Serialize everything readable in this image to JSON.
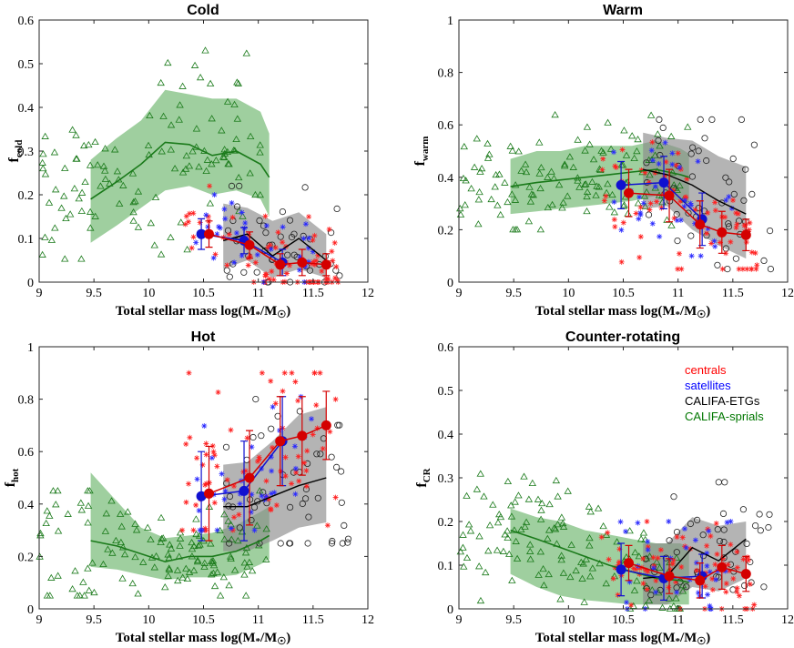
{
  "figure": {
    "xlabel_main": "Total stellar mass log(M",
    "xlabel_star": "*",
    "xlabel_mid": "/M",
    "xlabel_sun": "☉",
    "xlabel_end": ")",
    "legend": [
      {
        "label": "centrals",
        "color": "#ff0000"
      },
      {
        "label": "satellites",
        "color": "#0000ff"
      },
      {
        "label": "CALIFA-ETGs",
        "color": "#000000"
      },
      {
        "label": "CALIFA-sprials",
        "color": "#007700"
      }
    ]
  },
  "colors": {
    "central": "#d40000",
    "central_pts": "#ff2020",
    "satellite": "#1010d0",
    "satellite_pts": "#2a2aff",
    "etg": "#000000",
    "spiral": "#1a7a1a",
    "spiral_band": "#7fbf7f",
    "etg_band": "#8c8c8c"
  },
  "chart_data": [
    {
      "type": "line",
      "title": "Cold",
      "ylabel": "f",
      "ylabel_sub": "cold",
      "xlim": [
        9,
        12
      ],
      "ylim": [
        0,
        0.6
      ],
      "xticks": [
        9,
        9.5,
        10,
        10.5,
        11,
        11.5,
        12
      ],
      "xtick_labels": [
        "9",
        "9.5",
        "10",
        "10.5",
        "11",
        "11.5",
        "12"
      ],
      "yticks": [
        0,
        0.1,
        0.2,
        0.3,
        0.4,
        0.5,
        0.6
      ],
      "ytick_labels": [
        "0",
        "0.1",
        "0.2",
        "0.3",
        "0.4",
        "0.5",
        "0.6"
      ],
      "spirals": {
        "x": [
          9.47,
          9.71,
          9.93,
          10.15,
          10.37,
          10.58,
          10.8,
          11.02,
          11.1
        ],
        "y": [
          0.19,
          0.23,
          0.27,
          0.32,
          0.315,
          0.29,
          0.3,
          0.27,
          0.24
        ],
        "lo": [
          0.09,
          0.13,
          0.17,
          0.21,
          0.22,
          0.2,
          0.21,
          0.19,
          0.15
        ],
        "hi": [
          0.28,
          0.33,
          0.37,
          0.44,
          0.43,
          0.42,
          0.42,
          0.39,
          0.34
        ],
        "scatter_n": 120,
        "scatter_x": [
          9.0,
          11.1
        ],
        "scatter_y": [
          0.03,
          0.53
        ]
      },
      "etgs": {
        "x": [
          10.68,
          10.9,
          11.13,
          11.37,
          11.62
        ],
        "y": [
          0.095,
          0.11,
          0.06,
          0.1,
          0.05
        ],
        "lo": [
          0.03,
          0.05,
          0.01,
          0.03,
          0.01
        ],
        "hi": [
          0.18,
          0.17,
          0.14,
          0.16,
          0.11
        ],
        "scatter_n": 45,
        "scatter_x": [
          10.7,
          11.8
        ],
        "scatter_y": [
          0.0,
          0.22
        ]
      },
      "satellites": {
        "x": [
          10.48,
          10.87,
          11.22
        ],
        "y": [
          0.11,
          0.095,
          0.045
        ],
        "err": [
          0.035,
          0.03,
          0.03
        ],
        "scatter_n": 35,
        "scatter_x": [
          10.4,
          11.5
        ],
        "scatter_y": [
          0.0,
          0.2
        ]
      },
      "centrals": {
        "x": [
          10.55,
          10.92,
          11.2,
          11.4,
          11.62
        ],
        "y": [
          0.11,
          0.085,
          0.04,
          0.045,
          0.04
        ],
        "err": [
          0.03,
          0.03,
          0.025,
          0.03,
          0.025
        ],
        "scatter_n": 75,
        "scatter_x": [
          10.3,
          11.75
        ],
        "scatter_y": [
          0.0,
          0.22
        ]
      }
    },
    {
      "type": "line",
      "title": "Warm",
      "ylabel": "f",
      "ylabel_sub": "warm",
      "xlim": [
        9,
        12
      ],
      "ylim": [
        0,
        1
      ],
      "xticks": [
        9,
        9.5,
        10,
        10.5,
        11,
        11.5,
        12
      ],
      "xtick_labels": [
        "9",
        "9.5",
        "10",
        "10.5",
        "11",
        "11.5",
        "12"
      ],
      "yticks": [
        0,
        0.2,
        0.4,
        0.6,
        0.8,
        1
      ],
      "ytick_labels": [
        "0",
        "0.2",
        "0.4",
        "0.6",
        "0.8",
        "1"
      ],
      "spirals": {
        "x": [
          9.47,
          9.71,
          9.93,
          10.15,
          10.37,
          10.58,
          10.8,
          11.02,
          11.1
        ],
        "y": [
          0.365,
          0.38,
          0.39,
          0.4,
          0.41,
          0.42,
          0.43,
          0.41,
          0.4
        ],
        "lo": [
          0.26,
          0.27,
          0.28,
          0.29,
          0.3,
          0.31,
          0.33,
          0.31,
          0.3
        ],
        "hi": [
          0.47,
          0.5,
          0.5,
          0.52,
          0.52,
          0.52,
          0.54,
          0.51,
          0.49
        ],
        "scatter_n": 130,
        "scatter_x": [
          9.0,
          11.1
        ],
        "scatter_y": [
          0.2,
          0.65
        ]
      },
      "etgs": {
        "x": [
          10.68,
          10.9,
          11.13,
          11.37,
          11.62
        ],
        "y": [
          0.43,
          0.41,
          0.37,
          0.31,
          0.26
        ],
        "lo": [
          0.28,
          0.29,
          0.2,
          0.14,
          0.09
        ],
        "hi": [
          0.57,
          0.55,
          0.54,
          0.48,
          0.44
        ],
        "scatter_n": 50,
        "scatter_x": [
          10.7,
          11.85
        ],
        "scatter_y": [
          0.05,
          0.62
        ]
      },
      "satellites": {
        "x": [
          10.48,
          10.87,
          11.22
        ],
        "y": [
          0.37,
          0.38,
          0.24
        ],
        "err": [
          0.09,
          0.1,
          0.1
        ],
        "scatter_n": 35,
        "scatter_x": [
          10.4,
          11.5
        ],
        "scatter_y": [
          0.1,
          0.6
        ]
      },
      "centrals": {
        "x": [
          10.55,
          10.92,
          11.2,
          11.4,
          11.62
        ],
        "y": [
          0.34,
          0.33,
          0.22,
          0.19,
          0.18
        ],
        "err": [
          0.09,
          0.1,
          0.09,
          0.08,
          0.06
        ],
        "scatter_n": 75,
        "scatter_x": [
          10.3,
          11.75
        ],
        "scatter_y": [
          0.05,
          0.6
        ]
      }
    },
    {
      "type": "line",
      "title": "Hot",
      "ylabel": "f",
      "ylabel_sub": "hot",
      "xlim": [
        9,
        12
      ],
      "ylim": [
        0,
        1
      ],
      "xticks": [
        9,
        9.5,
        10,
        10.5,
        11,
        11.5,
        12
      ],
      "xtick_labels": [
        "9",
        "9.5",
        "10",
        "10.5",
        "11",
        "11.5",
        "12"
      ],
      "yticks": [
        0,
        0.2,
        0.4,
        0.6,
        0.8,
        1
      ],
      "ytick_labels": [
        "0",
        "0.2",
        "0.4",
        "0.6",
        "0.8",
        "1"
      ],
      "spirals": {
        "x": [
          9.47,
          9.71,
          9.93,
          10.15,
          10.37,
          10.58,
          10.8,
          11.02,
          11.1
        ],
        "y": [
          0.26,
          0.24,
          0.21,
          0.18,
          0.2,
          0.2,
          0.22,
          0.26,
          0.28
        ],
        "lo": [
          0.16,
          0.15,
          0.13,
          0.11,
          0.12,
          0.12,
          0.13,
          0.17,
          0.19
        ],
        "hi": [
          0.52,
          0.41,
          0.31,
          0.27,
          0.28,
          0.29,
          0.32,
          0.37,
          0.39
        ],
        "scatter_n": 130,
        "scatter_x": [
          9.0,
          11.1
        ],
        "scatter_y": [
          0.05,
          0.45
        ]
      },
      "etgs": {
        "x": [
          10.68,
          10.9,
          11.13,
          11.37,
          11.62
        ],
        "y": [
          0.39,
          0.39,
          0.43,
          0.47,
          0.5
        ],
        "lo": [
          0.22,
          0.22,
          0.26,
          0.31,
          0.33
        ],
        "hi": [
          0.55,
          0.56,
          0.64,
          0.74,
          0.77
        ],
        "scatter_n": 50,
        "scatter_x": [
          10.7,
          11.85
        ],
        "scatter_y": [
          0.25,
          0.8
        ]
      },
      "satellites": {
        "x": [
          10.48,
          10.87,
          11.22
        ],
        "y": [
          0.43,
          0.45,
          0.64
        ],
        "err": [
          0.17,
          0.19,
          0.17
        ],
        "scatter_n": 35,
        "scatter_x": [
          10.4,
          11.5
        ],
        "scatter_y": [
          0.3,
          0.88
        ]
      },
      "centrals": {
        "x": [
          10.55,
          10.92,
          11.2,
          11.4,
          11.62
        ],
        "y": [
          0.44,
          0.5,
          0.64,
          0.66,
          0.7
        ],
        "err": [
          0.18,
          0.18,
          0.17,
          0.15,
          0.13
        ],
        "scatter_n": 75,
        "scatter_x": [
          10.3,
          11.75
        ],
        "scatter_y": [
          0.3,
          0.9
        ]
      }
    },
    {
      "type": "line",
      "title": "Counter-rotating",
      "ylabel": "f",
      "ylabel_sub": "CR",
      "xlim": [
        9,
        12
      ],
      "ylim": [
        0,
        0.6
      ],
      "xticks": [
        9,
        9.5,
        10,
        10.5,
        11,
        11.5,
        12
      ],
      "xtick_labels": [
        "9",
        "9.5",
        "10",
        "10.5",
        "11",
        "11.5",
        "12"
      ],
      "yticks": [
        0,
        0.1,
        0.2,
        0.3,
        0.4,
        0.5,
        0.6
      ],
      "ytick_labels": [
        "0",
        "0.1",
        "0.2",
        "0.3",
        "0.4",
        "0.5",
        "0.6"
      ],
      "spirals": {
        "x": [
          9.47,
          9.71,
          9.93,
          10.15,
          10.37,
          10.58,
          10.8,
          11.02,
          11.1
        ],
        "y": [
          0.18,
          0.16,
          0.14,
          0.12,
          0.1,
          0.085,
          0.07,
          0.065,
          0.06
        ],
        "lo": [
          0.08,
          0.05,
          0.03,
          0.02,
          0.015,
          0.01,
          0.01,
          0.01,
          0.01
        ],
        "hi": [
          0.23,
          0.21,
          0.2,
          0.18,
          0.17,
          0.16,
          0.15,
          0.15,
          0.14
        ],
        "scatter_n": 130,
        "scatter_x": [
          9.0,
          11.1
        ],
        "scatter_y": [
          0.0,
          0.37
        ]
      },
      "etgs": {
        "x": [
          10.68,
          10.9,
          11.13,
          11.37,
          11.62
        ],
        "y": [
          0.07,
          0.075,
          0.14,
          0.11,
          0.16
        ],
        "lo": [
          0.01,
          0.01,
          0.05,
          0.04,
          0.07
        ],
        "hi": [
          0.15,
          0.15,
          0.21,
          0.19,
          0.2
        ],
        "scatter_n": 45,
        "scatter_x": [
          10.7,
          11.85
        ],
        "scatter_y": [
          0.0,
          0.29
        ]
      },
      "satellites": {
        "x": [
          10.48,
          10.87,
          11.22
        ],
        "y": [
          0.09,
          0.07,
          0.075
        ],
        "err": [
          0.06,
          0.05,
          0.05
        ],
        "scatter_n": 35,
        "scatter_x": [
          10.4,
          11.5
        ],
        "scatter_y": [
          0.0,
          0.2
        ]
      },
      "centrals": {
        "x": [
          10.55,
          10.92,
          11.2,
          11.4,
          11.62
        ],
        "y": [
          0.105,
          0.075,
          0.065,
          0.095,
          0.08
        ],
        "err": [
          0.04,
          0.04,
          0.04,
          0.05,
          0.04
        ],
        "scatter_n": 75,
        "scatter_x": [
          10.3,
          11.75
        ],
        "scatter_y": [
          0.0,
          0.2
        ]
      }
    }
  ]
}
